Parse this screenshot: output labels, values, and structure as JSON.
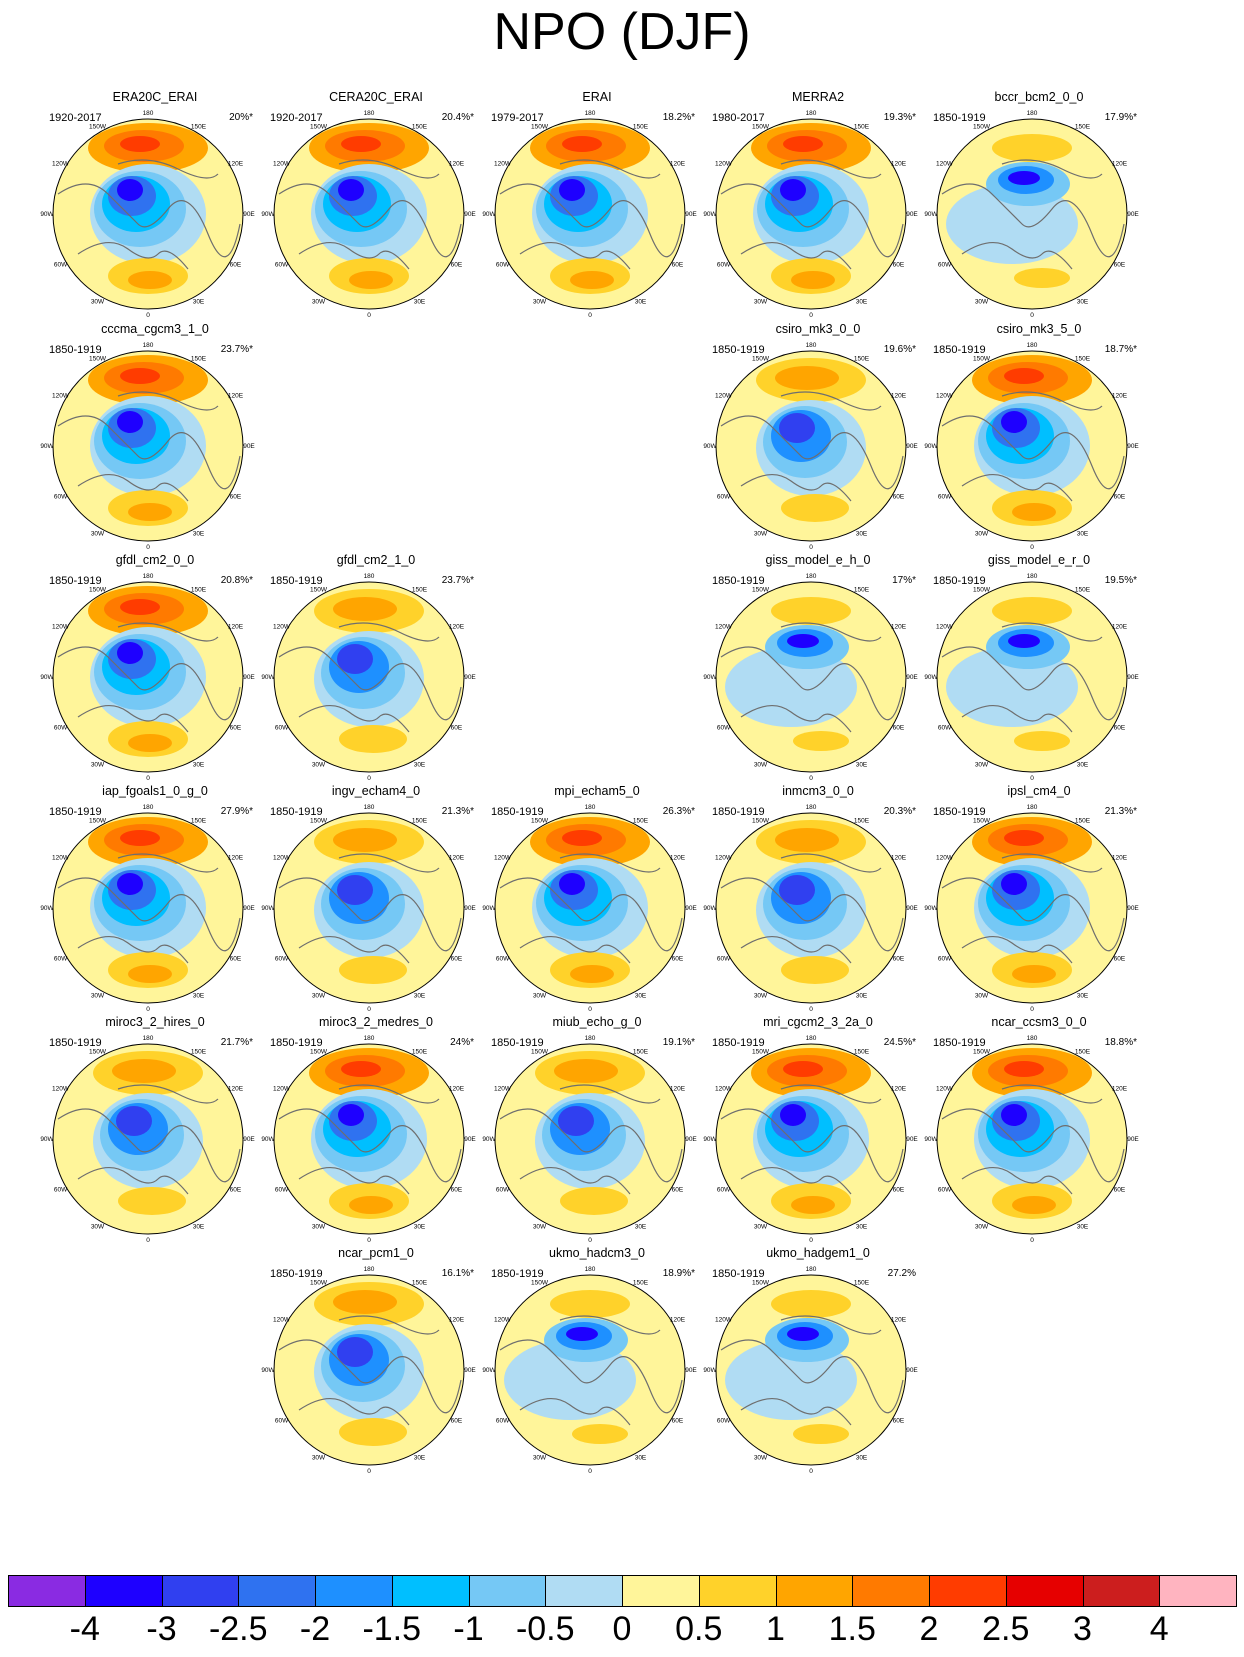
{
  "title": "NPO (DJF)",
  "colorbar": {
    "colors": [
      "#8a2be2",
      "#1e00ff",
      "#3040f0",
      "#2f72f0",
      "#1e90ff",
      "#00bfff",
      "#75c8f5",
      "#b0dcf3",
      "#fff59a",
      "#ffd22a",
      "#ffa500",
      "#ff7a00",
      "#ff3c00",
      "#e60000",
      "#cc1e1e",
      "#ffb4c0"
    ],
    "labels": [
      "-4",
      "-3",
      "-2.5",
      "-2",
      "-1.5",
      "-1",
      "-0.5",
      "0",
      "0.5",
      "1",
      "1.5",
      "2",
      "2.5",
      "3",
      "4"
    ]
  },
  "lon_labels": [
    "180",
    "150E",
    "120E",
    "90E",
    "60E",
    "30E",
    "0",
    "30W",
    "60W",
    "90W",
    "120W",
    "150W"
  ],
  "panels": [
    {
      "model": "ERA20C_ERAI",
      "period": "1920-2017",
      "pct": "20%*",
      "style": "strong"
    },
    {
      "model": "CERA20C_ERAI",
      "period": "1920-2017",
      "pct": "20.4%*",
      "style": "strong"
    },
    {
      "model": "ERAI",
      "period": "1979-2017",
      "pct": "18.2%*",
      "style": "strong"
    },
    {
      "model": "MERRA2",
      "period": "1980-2017",
      "pct": "19.3%*",
      "style": "strong"
    },
    {
      "model": "bccr_bcm2_0_0",
      "period": "1850-1919",
      "pct": "17.9%*",
      "style": "weak"
    },
    {
      "model": "cccma_cgcm3_1_0",
      "period": "1850-1919",
      "pct": "23.7%*",
      "style": "strong"
    },
    {
      "model": "csiro_mk3_0_0",
      "period": "1850-1919",
      "pct": "19.6%*",
      "style": "medium"
    },
    {
      "model": "csiro_mk3_5_0",
      "period": "1850-1919",
      "pct": "18.7%*",
      "style": "strong"
    },
    {
      "model": "gfdl_cm2_0_0",
      "period": "1850-1919",
      "pct": "20.8%*",
      "style": "strong"
    },
    {
      "model": "gfdl_cm2_1_0",
      "period": "1850-1919",
      "pct": "23.7%*",
      "style": "medium"
    },
    {
      "model": "giss_model_e_h_0",
      "period": "1850-1919",
      "pct": "17%*",
      "style": "weak"
    },
    {
      "model": "giss_model_e_r_0",
      "period": "1850-1919",
      "pct": "19.5%*",
      "style": "weak"
    },
    {
      "model": "iap_fgoals1_0_g_0",
      "period": "1850-1919",
      "pct": "27.9%*",
      "style": "strong"
    },
    {
      "model": "ingv_echam4_0",
      "period": "1850-1919",
      "pct": "21.3%*",
      "style": "medium"
    },
    {
      "model": "mpi_echam5_0",
      "period": "1850-1919",
      "pct": "26.3%*",
      "style": "strong"
    },
    {
      "model": "inmcm3_0_0",
      "period": "1850-1919",
      "pct": "20.3%*",
      "style": "medium"
    },
    {
      "model": "ipsl_cm4_0",
      "period": "1850-1919",
      "pct": "21.3%*",
      "style": "strong"
    },
    {
      "model": "miroc3_2_hires_0",
      "period": "1850-1919",
      "pct": "21.7%*",
      "style": "medium"
    },
    {
      "model": "miroc3_2_medres_0",
      "period": "1850-1919",
      "pct": "24%*",
      "style": "strong"
    },
    {
      "model": "miub_echo_g_0",
      "period": "1850-1919",
      "pct": "19.1%*",
      "style": "medium"
    },
    {
      "model": "mri_cgcm2_3_2a_0",
      "period": "1850-1919",
      "pct": "24.5%*",
      "style": "strong"
    },
    {
      "model": "ncar_ccsm3_0_0",
      "period": "1850-1919",
      "pct": "18.8%*",
      "style": "strong"
    },
    {
      "model": "ncar_pcm1_0",
      "period": "1850-1919",
      "pct": "16.1%*",
      "style": "medium"
    },
    {
      "model": "ukmo_hadcm3_0",
      "period": "1850-1919",
      "pct": "18.9%*",
      "style": "weak"
    },
    {
      "model": "ukmo_hadgem1_0",
      "period": "1850-1919",
      "pct": "27.2%",
      "style": "weak"
    }
  ]
}
